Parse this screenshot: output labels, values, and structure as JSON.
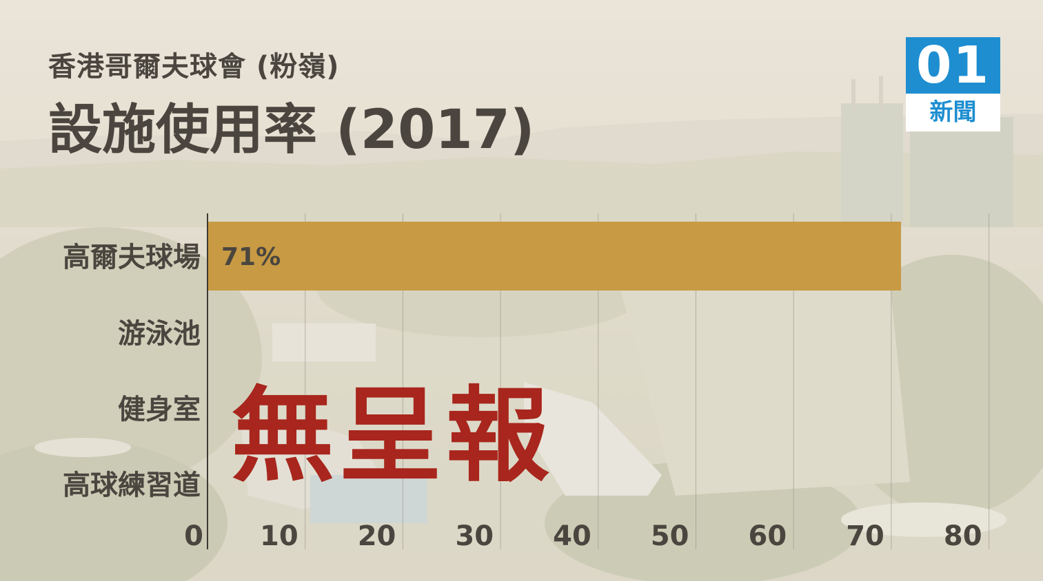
{
  "header": {
    "subtitle": "香港哥爾夫球會 (粉嶺)",
    "title": "設施使用率 (2017)"
  },
  "logo": {
    "number": "01",
    "label": "新聞"
  },
  "stamp_text": "無呈報",
  "colors": {
    "bar": "#c89a44",
    "title_text": "#4a463f",
    "stamp": "#a8261d",
    "logo_blue": "#1e8ed0"
  },
  "chart_data": {
    "type": "bar",
    "orientation": "horizontal",
    "categories": [
      "高爾夫球場",
      "游泳池",
      "健身室",
      "高球練習道"
    ],
    "values": [
      71,
      null,
      null,
      null
    ],
    "data_labels": [
      "71%",
      "",
      "",
      ""
    ],
    "x_ticks": [
      "0",
      "10",
      "20",
      "30",
      "40",
      "50",
      "60",
      "70",
      "80"
    ],
    "xlim": [
      0,
      80
    ],
    "grid": true,
    "title": "設施使用率 (2017)",
    "subtitle": "香港哥爾夫球會 (粉嶺)",
    "annotation": "無呈報"
  }
}
